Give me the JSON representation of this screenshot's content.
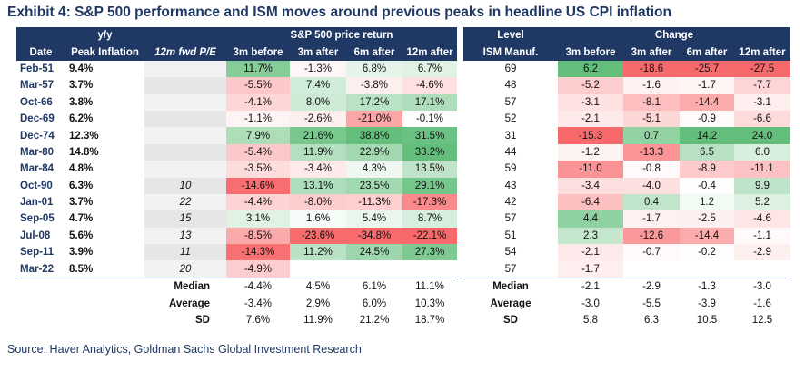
{
  "title": "Exhibit 4: S&P 500 performance and ISM moves around previous peaks in headline US CPI inflation",
  "left_header": {
    "yy": "y/y",
    "sp_price_return": "S&P 500 price return",
    "cols": [
      "Date",
      "Peak Inflation",
      "12m fwd P/E",
      "3m before",
      "3m after",
      "6m after",
      "12m after"
    ]
  },
  "right_header": {
    "level": "Level",
    "change": "Change",
    "cols": [
      "ISM Manuf.",
      "3m before",
      "3m after",
      "6m after",
      "12m after"
    ]
  },
  "rows": [
    {
      "date": "Feb-51",
      "peak": "9.4%",
      "pe": "",
      "sp": [
        "11.7%",
        "-1.3%",
        "6.8%",
        "6.7%"
      ],
      "ism": "69",
      "chg": [
        "6.2",
        "-18.6",
        "-25.7",
        "-27.5"
      ]
    },
    {
      "date": "Mar-57",
      "peak": "3.7%",
      "pe": "",
      "sp": [
        "-5.5%",
        "7.4%",
        "-3.8%",
        "-4.6%"
      ],
      "ism": "48",
      "chg": [
        "-5.2",
        "-1.6",
        "-1.7",
        "-7.7"
      ]
    },
    {
      "date": "Oct-66",
      "peak": "3.8%",
      "pe": "",
      "sp": [
        "-4.1%",
        "8.0%",
        "17.2%",
        "17.1%"
      ],
      "ism": "57",
      "chg": [
        "-3.1",
        "-8.1",
        "-14.4",
        "-3.1"
      ]
    },
    {
      "date": "Dec-69",
      "peak": "6.2%",
      "pe": "",
      "sp": [
        "-1.1%",
        "-2.6%",
        "-21.0%",
        "-0.1%"
      ],
      "ism": "52",
      "chg": [
        "-2.1",
        "-5.1",
        "-0.9",
        "-6.6"
      ]
    },
    {
      "date": "Dec-74",
      "peak": "12.3%",
      "pe": "",
      "sp": [
        "7.9%",
        "21.6%",
        "38.8%",
        "31.5%"
      ],
      "ism": "31",
      "chg": [
        "-15.3",
        "0.7",
        "14.2",
        "24.0"
      ]
    },
    {
      "date": "Mar-80",
      "peak": "14.8%",
      "pe": "",
      "sp": [
        "-5.4%",
        "11.9%",
        "22.9%",
        "33.2%"
      ],
      "ism": "44",
      "chg": [
        "-1.2",
        "-13.3",
        "6.5",
        "6.0"
      ]
    },
    {
      "date": "Mar-84",
      "peak": "4.8%",
      "pe": "",
      "sp": [
        "-3.5%",
        "-3.4%",
        "4.3%",
        "13.5%"
      ],
      "ism": "59",
      "chg": [
        "-11.0",
        "-0.8",
        "-8.9",
        "-11.1"
      ]
    },
    {
      "date": "Oct-90",
      "peak": "6.3%",
      "pe": "10",
      "sp": [
        "-14.6%",
        "13.1%",
        "23.5%",
        "29.1%"
      ],
      "ism": "43",
      "chg": [
        "-3.4",
        "-4.0",
        "-0.4",
        "9.9"
      ]
    },
    {
      "date": "Jan-01",
      "peak": "3.7%",
      "pe": "22",
      "sp": [
        "-4.4%",
        "-8.0%",
        "-11.3%",
        "-17.3%"
      ],
      "ism": "42",
      "chg": [
        "-6.4",
        "0.4",
        "1.2",
        "5.2"
      ]
    },
    {
      "date": "Sep-05",
      "peak": "4.7%",
      "pe": "15",
      "sp": [
        "3.1%",
        "1.6%",
        "5.4%",
        "8.7%"
      ],
      "ism": "57",
      "chg": [
        "4.4",
        "-1.7",
        "-2.5",
        "-4.6"
      ]
    },
    {
      "date": "Jul-08",
      "peak": "5.6%",
      "pe": "13",
      "sp": [
        "-8.5%",
        "-23.6%",
        "-34.8%",
        "-22.1%"
      ],
      "ism": "51",
      "chg": [
        "2.3",
        "-12.6",
        "-14.4",
        "-1.1"
      ]
    },
    {
      "date": "Sep-11",
      "peak": "3.9%",
      "pe": "11",
      "sp": [
        "-14.3%",
        "11.2%",
        "24.5%",
        "27.3%"
      ],
      "ism": "54",
      "chg": [
        "-2.1",
        "-0.7",
        "-0.2",
        "-2.9"
      ]
    },
    {
      "date": "Mar-22",
      "peak": "8.5%",
      "pe": "20",
      "sp": [
        "-4.9%",
        "",
        "",
        ""
      ],
      "ism": "57",
      "chg": [
        "-1.7",
        "",
        "",
        ""
      ]
    }
  ],
  "stats": [
    {
      "label": "Median",
      "sp": [
        "-4.4%",
        "4.5%",
        "6.1%",
        "11.1%"
      ],
      "chg": [
        "-2.1",
        "-2.9",
        "-1.3",
        "-3.0"
      ]
    },
    {
      "label": "Average",
      "sp": [
        "-3.4%",
        "2.9%",
        "6.0%",
        "10.3%"
      ],
      "chg": [
        "-3.0",
        "-5.5",
        "-3.9",
        "-1.6"
      ]
    },
    {
      "label": "SD",
      "sp": [
        "7.6%",
        "11.9%",
        "21.2%",
        "18.7%"
      ],
      "chg": [
        "5.8",
        "6.3",
        "10.5",
        "12.5"
      ]
    }
  ],
  "source": "Source: Haver Analytics, Goldman Sachs Global Investment Research",
  "colors": {
    "header": "#1f3864",
    "positive": "#63be7b",
    "negative": "#f8696b",
    "neutral": "#ffffff"
  }
}
